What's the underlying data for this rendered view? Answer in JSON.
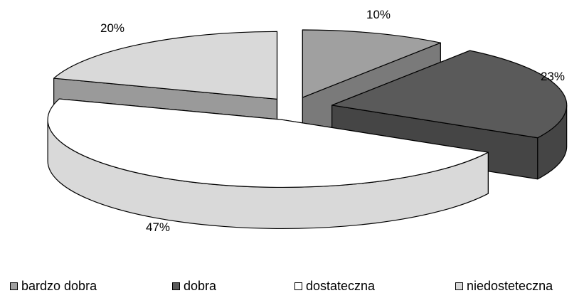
{
  "chart_data": {
    "type": "pie",
    "style": "3d-exploded",
    "title": "",
    "categories": [
      "bardzo dobra",
      "dobra",
      "dostateczna",
      "niedosteteczna"
    ],
    "values": [
      10,
      23,
      47,
      20
    ],
    "labels": [
      "10%",
      "23%",
      "47%",
      "20%"
    ],
    "colors": [
      "#a0a0a0",
      "#5a5a5a",
      "#ffffff",
      "#d9d9d9"
    ],
    "side_colors": [
      "#7a7a7a",
      "#454545",
      "#d9d9d9",
      "#9a9a9a"
    ],
    "legend_position": "bottom",
    "legend": [
      "bardzo dobra",
      "dobra",
      "dostateczna",
      "niedosteteczna"
    ]
  }
}
